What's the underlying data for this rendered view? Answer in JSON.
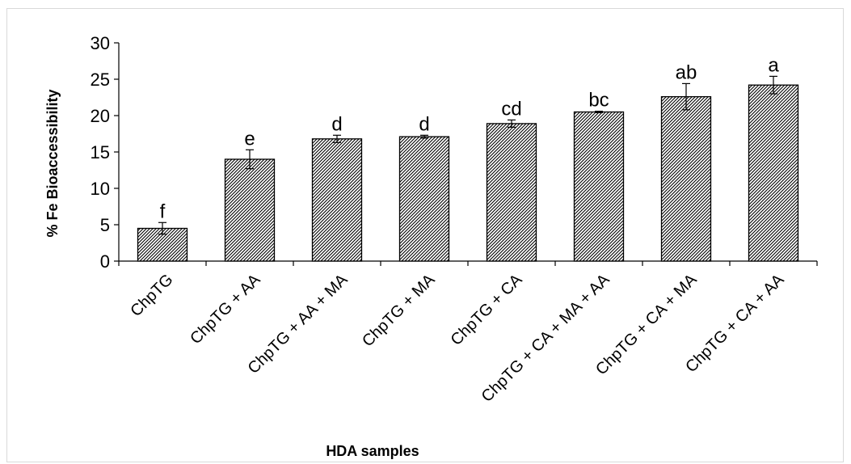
{
  "chart_data": {
    "type": "bar",
    "title": "",
    "xlabel": "HDA samples",
    "ylabel": "% Fe Bioaccessibility",
    "ylim": [
      0,
      30
    ],
    "yticks": [
      0,
      5,
      10,
      15,
      20,
      25,
      30
    ],
    "grid": false,
    "legend": "none",
    "bar_pattern": "diagonal-hatch",
    "colors": {
      "bar_stroke": "#000000",
      "pattern": "#000000",
      "axis": "#000000"
    },
    "categories": [
      "ChpTG",
      "ChpTG + AA",
      "ChpTG + AA + MA",
      "ChpTG + MA",
      "ChpTG + CA",
      "ChpTG + CA + MA + AA",
      "ChpTG + CA + MA",
      "ChpTG + CA + AA"
    ],
    "values": [
      4.5,
      14.0,
      16.8,
      17.1,
      18.9,
      20.5,
      22.6,
      24.2
    ],
    "errors": [
      0.8,
      1.3,
      0.5,
      0.2,
      0.5,
      0.1,
      1.8,
      1.2
    ],
    "significance_letters": [
      "f",
      "e",
      "d",
      "d",
      "cd",
      "bc",
      "ab",
      "a"
    ]
  }
}
